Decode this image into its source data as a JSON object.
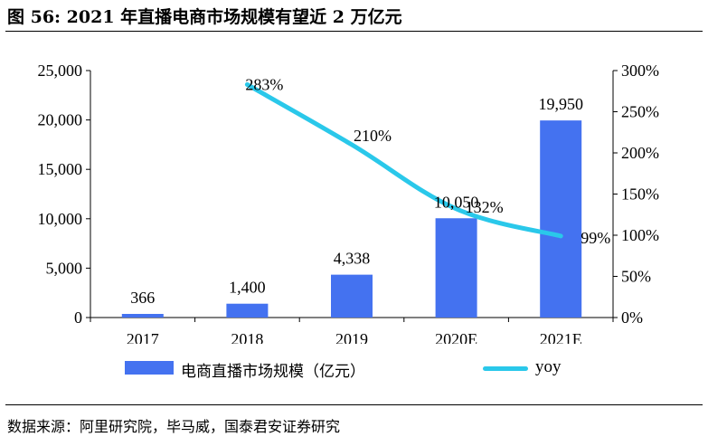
{
  "title": "图 56:  2021 年直播电商市场规模有望近 2 万亿元",
  "source": "数据来源：阿里研究院，毕马威，国泰君安证券研究",
  "colors": {
    "bar": "#4472f0",
    "line": "#2ac8ea"
  },
  "chart_data": {
    "type": "bar",
    "categories": [
      "2017",
      "2018",
      "2019",
      "2020E",
      "2021E"
    ],
    "series": [
      {
        "name": "电商直播市场规模（亿元）",
        "type": "bar",
        "axis": "left",
        "values": [
          366,
          1400,
          4338,
          10050,
          19950
        ],
        "labels": [
          "366",
          "1,400",
          "4,338",
          "10,050",
          "19,950"
        ]
      },
      {
        "name": "yoy",
        "type": "line",
        "axis": "right",
        "values": [
          null,
          283,
          210,
          132,
          99
        ],
        "labels": [
          "",
          "283%",
          "210%",
          "132%",
          "99%"
        ]
      }
    ],
    "y_left": {
      "ylim": [
        0,
        25000
      ],
      "ticks": [
        "0",
        "5,000",
        "10,000",
        "15,000",
        "20,000",
        "25,000"
      ]
    },
    "y_right": {
      "ylim": [
        0,
        300
      ],
      "ticks": [
        "0%",
        "50%",
        "100%",
        "150%",
        "200%",
        "250%",
        "300%"
      ]
    },
    "grid": false,
    "legend": "bottom"
  }
}
